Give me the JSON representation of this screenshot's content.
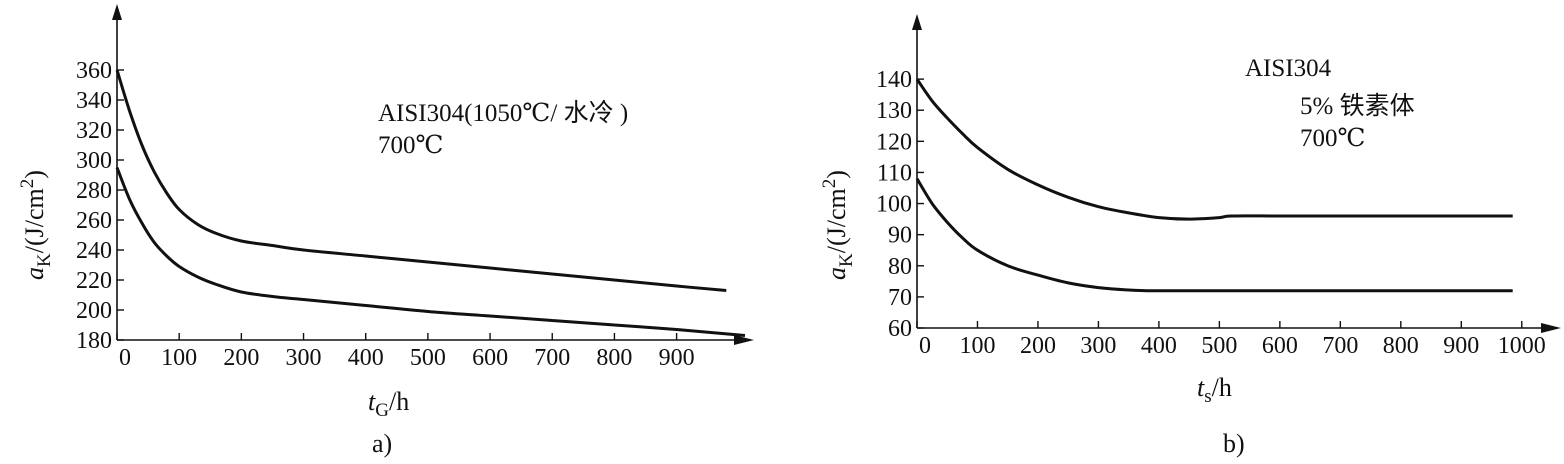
{
  "chart_data": [
    {
      "type": "line",
      "panel_label": "a)",
      "annotation": [
        "AISI304(1050℃/ 水冷 )",
        "700℃"
      ],
      "xlabel_main": "t",
      "xlabel_sub": "G",
      "xlabel_unit": "/h",
      "ylabel_main": "a",
      "ylabel_sub": "K",
      "ylabel_unit": "/(J/cm",
      "ylabel_sup": "2",
      "ylabel_close": ")",
      "xlim": [
        0,
        1010
      ],
      "ylim": [
        180,
        380
      ],
      "xticks": [
        0,
        100,
        200,
        300,
        400,
        500,
        600,
        700,
        800,
        900
      ],
      "yticks": [
        180,
        200,
        220,
        240,
        260,
        280,
        300,
        320,
        340,
        360
      ],
      "series": [
        {
          "name": "upper",
          "x": [
            0,
            20,
            40,
            60,
            80,
            100,
            130,
            160,
            200,
            250,
            300,
            400,
            500,
            600,
            700,
            800,
            900,
            980
          ],
          "y": [
            360,
            333,
            310,
            292,
            278,
            267,
            257,
            251,
            246,
            243,
            240,
            236,
            232,
            228,
            224,
            220,
            216,
            213
          ]
        },
        {
          "name": "lower",
          "x": [
            0,
            20,
            40,
            60,
            80,
            100,
            130,
            160,
            200,
            250,
            300,
            400,
            500,
            600,
            700,
            800,
            900,
            1010
          ],
          "y": [
            295,
            274,
            258,
            245,
            236,
            229,
            222,
            217,
            212,
            209,
            207,
            203,
            199,
            196,
            193,
            190,
            187,
            183
          ]
        }
      ]
    },
    {
      "type": "line",
      "panel_label": "b)",
      "annotation": [
        "AISI304",
        "5% 铁素体",
        "700℃"
      ],
      "xlabel_main": "t",
      "xlabel_sub": "s",
      "xlabel_unit": "/h",
      "ylabel_main": "a",
      "ylabel_sub": "K",
      "ylabel_unit": "/(J/cm",
      "ylabel_sup": "2",
      "ylabel_close": ")",
      "xlim": [
        0,
        1050
      ],
      "ylim": [
        60,
        150
      ],
      "xticks": [
        0,
        100,
        200,
        300,
        400,
        500,
        600,
        700,
        800,
        900,
        1000
      ],
      "yticks": [
        60,
        70,
        80,
        90,
        100,
        110,
        120,
        130,
        140
      ],
      "series": [
        {
          "name": "upper",
          "x": [
            0,
            25,
            50,
            75,
            100,
            150,
            200,
            250,
            300,
            350,
            400,
            450,
            500,
            520,
            600,
            700,
            800,
            900,
            985
          ],
          "y": [
            140,
            133,
            127.5,
            122.5,
            118,
            111,
            106,
            102,
            99,
            97,
            95.5,
            95,
            95.5,
            96,
            96,
            96,
            96,
            96,
            96
          ]
        },
        {
          "name": "lower",
          "x": [
            0,
            25,
            50,
            75,
            100,
            150,
            200,
            250,
            300,
            350,
            380,
            450,
            600,
            800,
            985
          ],
          "y": [
            108,
            100,
            94,
            89,
            85,
            80,
            77,
            74.5,
            73,
            72.2,
            72,
            72,
            72,
            72,
            72
          ]
        }
      ]
    }
  ]
}
